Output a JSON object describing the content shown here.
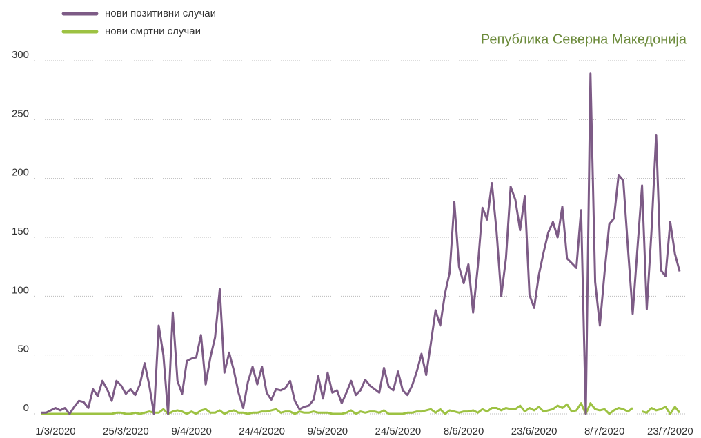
{
  "chart_data": {
    "type": "line",
    "title": "Република Северна Македонија",
    "categories": [
      null,
      null,
      null,
      "1/3/2020",
      null,
      null,
      null,
      null,
      null,
      null,
      null,
      null,
      null,
      null,
      null,
      null,
      null,
      null,
      "25/3/2020",
      null,
      null,
      null,
      null,
      null,
      null,
      null,
      null,
      null,
      null,
      null,
      null,
      null,
      "9/4/2020",
      null,
      null,
      null,
      null,
      null,
      null,
      null,
      null,
      null,
      null,
      null,
      null,
      null,
      null,
      "24/4/2020",
      null,
      null,
      null,
      null,
      null,
      null,
      null,
      null,
      null,
      null,
      null,
      null,
      null,
      "9/5/2020",
      null,
      null,
      null,
      null,
      null,
      null,
      null,
      null,
      null,
      null,
      null,
      null,
      null,
      null,
      "24/5/2020",
      null,
      null,
      null,
      null,
      null,
      null,
      null,
      null,
      null,
      null,
      null,
      null,
      null,
      "8/6/2020",
      null,
      null,
      null,
      null,
      null,
      null,
      null,
      null,
      null,
      null,
      null,
      null,
      null,
      null,
      "23/6/2020",
      null,
      null,
      null,
      null,
      null,
      null,
      null,
      null,
      null,
      null,
      null,
      null,
      null,
      null,
      "8/7/2020",
      null,
      null,
      null,
      null,
      null,
      null,
      null,
      null,
      null,
      null,
      null,
      null,
      null,
      "23/7/2020",
      null,
      null
    ],
    "series": [
      {
        "name": "нови позитивни случаи",
        "color": "#7d5b86",
        "values": [
          1,
          1,
          3,
          5,
          3,
          5,
          0,
          6,
          11,
          10,
          5,
          21,
          15,
          28,
          21,
          11,
          28,
          24,
          17,
          21,
          16,
          25,
          43,
          24,
          0,
          75,
          50,
          0,
          86,
          28,
          17,
          45,
          47,
          48,
          67,
          25,
          48,
          65,
          106,
          35,
          52,
          37,
          18,
          5,
          27,
          40,
          25,
          40,
          18,
          12,
          21,
          20,
          22,
          28,
          11,
          4,
          6,
          7,
          12,
          32,
          13,
          35,
          18,
          20,
          9,
          18,
          28,
          16,
          20,
          29,
          24,
          21,
          18,
          39,
          23,
          20,
          36,
          20,
          16,
          24,
          36,
          51,
          33,
          60,
          88,
          75,
          102,
          120,
          180,
          125,
          111,
          127,
          86,
          125,
          175,
          165,
          196,
          155,
          100,
          132,
          193,
          182,
          156,
          185,
          101,
          90,
          118,
          137,
          154,
          163,
          150,
          176,
          132,
          128,
          124,
          173,
          0,
          289,
          112,
          75,
          120,
          161,
          166,
          203,
          198,
          140,
          85,
          140,
          194,
          89,
          155,
          237,
          122,
          117,
          163,
          136,
          121
        ]
      },
      {
        "name": "нови смртни случаи",
        "color": "#9dc243",
        "values": [
          0,
          0,
          0,
          0,
          0,
          0,
          0,
          0,
          0,
          0,
          0,
          0,
          0,
          0,
          0,
          0,
          1,
          1,
          0,
          0,
          1,
          0,
          1,
          2,
          1,
          1,
          4,
          0,
          2,
          3,
          2,
          0,
          2,
          0,
          3,
          4,
          1,
          1,
          3,
          0,
          2,
          3,
          1,
          1,
          0,
          1,
          1,
          2,
          2,
          3,
          4,
          1,
          2,
          2,
          0,
          2,
          1,
          1,
          2,
          1,
          1,
          1,
          0,
          0,
          0,
          1,
          3,
          0,
          2,
          1,
          2,
          2,
          1,
          3,
          0,
          0,
          0,
          0,
          1,
          1,
          2,
          2,
          3,
          4,
          1,
          4,
          0,
          3,
          2,
          1,
          2,
          2,
          3,
          1,
          4,
          2,
          5,
          5,
          3,
          5,
          4,
          4,
          7,
          2,
          5,
          3,
          6,
          2,
          3,
          4,
          7,
          5,
          8,
          2,
          3,
          9,
          0,
          9,
          4,
          3,
          4,
          0,
          3,
          5,
          4,
          2,
          5,
          null,
          2,
          1,
          5,
          3,
          4,
          6,
          0,
          6,
          1
        ]
      }
    ],
    "ylim": [
      0,
      300
    ],
    "yticks": [
      0,
      50,
      100,
      150,
      200,
      250,
      300
    ],
    "grid": true
  }
}
